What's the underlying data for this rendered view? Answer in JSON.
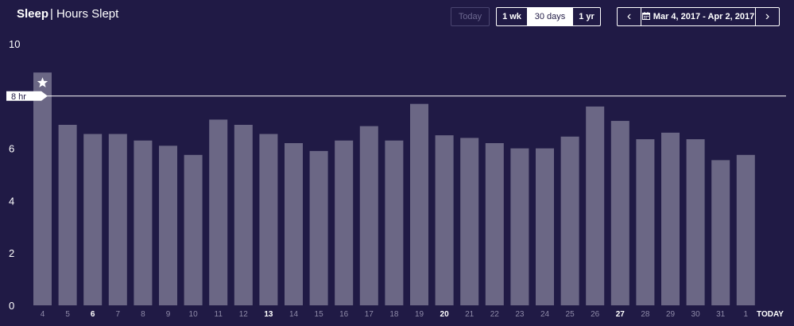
{
  "header": {
    "title_bold": "Sleep",
    "title_sep": "|",
    "title_rest": "Hours Slept"
  },
  "controls": {
    "today_label": "Today",
    "range_options": [
      "1 wk",
      "30 days",
      "1 yr"
    ],
    "active_range": "30 days",
    "date_range_label": "Mar 4, 2017 - Apr 2, 2017",
    "calendar_icon": "calendar-icon",
    "prev_icon": "chevron-left-icon",
    "next_icon": "chevron-right-icon"
  },
  "colors": {
    "background": "#201a45",
    "bar": "#6b6785",
    "axis_text": "#ffffff",
    "tick_muted": "#8e8aa8",
    "goal_line": "#ffffff"
  },
  "chart_data": {
    "type": "bar",
    "ylim": [
      0,
      10
    ],
    "yticks": [
      0,
      2,
      4,
      6,
      8,
      10
    ],
    "categories": [
      "4",
      "5",
      "6",
      "7",
      "8",
      "9",
      "10",
      "11",
      "12",
      "13",
      "14",
      "15",
      "16",
      "17",
      "18",
      "19",
      "20",
      "21",
      "22",
      "23",
      "24",
      "25",
      "26",
      "27",
      "28",
      "29",
      "30",
      "31",
      "1"
    ],
    "bold_ticks": [
      "6",
      "13",
      "20",
      "27"
    ],
    "extra_tick": "TODAY",
    "values": [
      8.9,
      6.9,
      6.55,
      6.55,
      6.3,
      6.1,
      5.75,
      7.1,
      6.9,
      6.55,
      6.2,
      5.9,
      6.3,
      6.85,
      6.3,
      7.7,
      6.5,
      6.4,
      6.2,
      6.0,
      6.0,
      6.45,
      7.6,
      7.05,
      6.35,
      6.6,
      6.35,
      5.55,
      5.75
    ],
    "goal": {
      "value": 8,
      "label": "8 hr"
    },
    "highlight_index": 0,
    "highlight_icon": "star-icon"
  }
}
